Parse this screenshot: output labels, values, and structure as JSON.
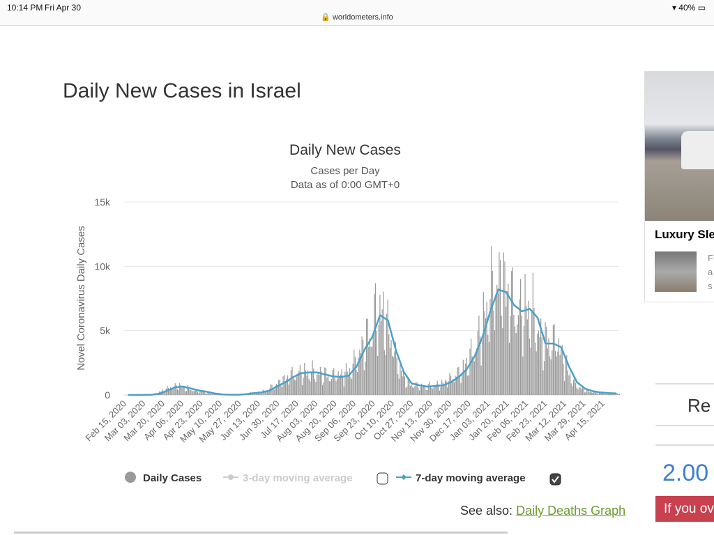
{
  "status": {
    "time": "10:14 PM",
    "date": "Fri Apr 30",
    "url": "worldometers.info",
    "battery": "40%"
  },
  "page_title": "Daily New Cases in Israel",
  "see_also": {
    "label": "See also:",
    "link": "Daily Deaths Graph"
  },
  "ad": {
    "title": "Luxury Sle",
    "text": [
      "F",
      "a",
      "s"
    ]
  },
  "sidebar": {
    "ref": "Re",
    "pct": "2.00",
    "owe": "If you ov"
  },
  "chart_data": {
    "type": "bar",
    "title": "Daily New Cases",
    "subtitle": "Cases per Day",
    "subtitle2": "Data as of 0:00 GMT+0",
    "ylabel": "Novel Coronavirus Daily Cases",
    "ylim": [
      0,
      15000
    ],
    "yticks": [
      {
        "v": 0,
        "label": "0"
      },
      {
        "v": 5000,
        "label": "5k"
      },
      {
        "v": 10000,
        "label": "10k"
      },
      {
        "v": 15000,
        "label": "15k"
      }
    ],
    "xticks": [
      "Feb 15, 2020",
      "Mar 03, 2020",
      "Mar 20, 2020",
      "Apr 06, 2020",
      "Apr 23, 2020",
      "May 10, 2020",
      "May 27, 2020",
      "Jun 13, 2020",
      "Jun 30, 2020",
      "Jul 17, 2020",
      "Aug 03, 2020",
      "Aug 20, 2020",
      "Sep 06, 2020",
      "Sep 23, 2020",
      "Oct 10, 2020",
      "Oct 27, 2020",
      "Nov 13, 2020",
      "Nov 30, 2020",
      "Dec 17, 2020",
      "Jan 03, 2021",
      "Jan 20, 2021",
      "Feb 06, 2021",
      "Feb 23, 2021",
      "Mar 12, 2021",
      "Mar 29, 2021",
      "Apr 15, 2021"
    ],
    "days_total": 440,
    "tick_interval_days": 17,
    "weekly_start": "Feb 15, 2020",
    "weekly_7day_avg": [
      0,
      0,
      5,
      20,
      100,
      350,
      600,
      650,
      500,
      350,
      250,
      120,
      40,
      20,
      20,
      60,
      150,
      200,
      350,
      700,
      1000,
      1400,
      1700,
      1750,
      1750,
      1600,
      1450,
      1400,
      1500,
      2200,
      3500,
      4500,
      6200,
      5800,
      3500,
      1800,
      900,
      750,
      650,
      700,
      750,
      1000,
      1400,
      2000,
      3000,
      4500,
      6500,
      8200,
      8000,
      7000,
      6500,
      6700,
      6000,
      4000,
      4000,
      3700,
      2200,
      1000,
      500,
      300,
      200,
      150,
      120
    ],
    "weekday_pattern": [
      1.15,
      1.25,
      1.2,
      1.1,
      0.95,
      0.6,
      0.75
    ],
    "legend": [
      {
        "label": "Daily Cases",
        "color": "#999999"
      },
      {
        "label": "3-day moving average",
        "color": "#cccccc",
        "checked": false
      },
      {
        "label": "7-day moving average",
        "color": "#4aa0c8",
        "checked": true
      }
    ]
  }
}
